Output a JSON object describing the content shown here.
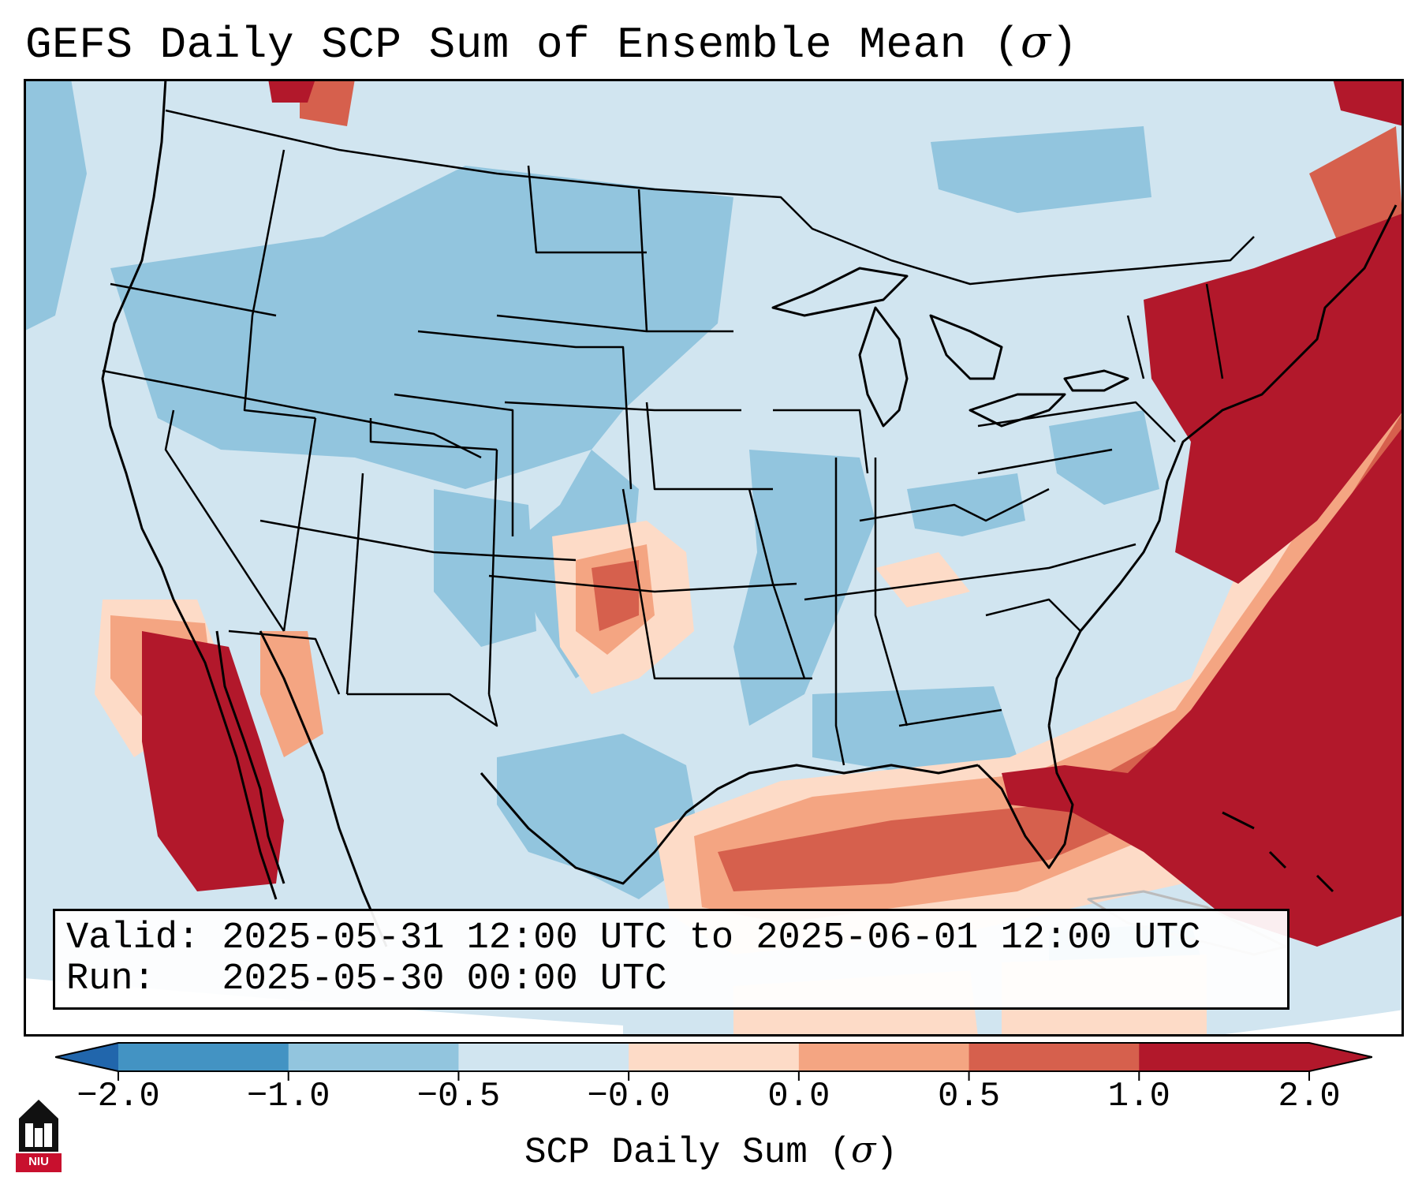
{
  "title": {
    "main": "GEFS Daily SCP Sum of Ensemble Mean (",
    "sigma": "σ",
    "close": ")"
  },
  "info": {
    "valid": "Valid: 2025-05-31 12:00 UTC to 2025-06-01 12:00 UTC",
    "run": "Run:   2025-05-30 00:00 UTC"
  },
  "colorbar": {
    "ticks": [
      "−2.0",
      "−1.0",
      "−0.5",
      "−0.0",
      "0.0",
      "0.5",
      "1.0",
      "2.0"
    ],
    "label_main": "SCP Daily Sum (",
    "label_sigma": "σ",
    "label_close": ")",
    "colors": [
      "#4393c3",
      "#92c5de",
      "#d1e5f0",
      "#fddbc7",
      "#f4a582",
      "#d6604d",
      "#b2182b"
    ],
    "under_color": "#2166ac",
    "over_color": "#b2182b"
  },
  "logo": {
    "text": "NIU"
  },
  "map_regions": {
    "gulf_of_mexico_band": "positive anomaly 0.5 to 2.0",
    "baja_california": "positive anomaly > 2.0",
    "atlantic_coast": "positive anomaly > 2.0",
    "southern_plains": "positive anomaly 0.5 to 1.0",
    "interior_west_midwest": "negative anomaly -1.0 to -0.5"
  }
}
